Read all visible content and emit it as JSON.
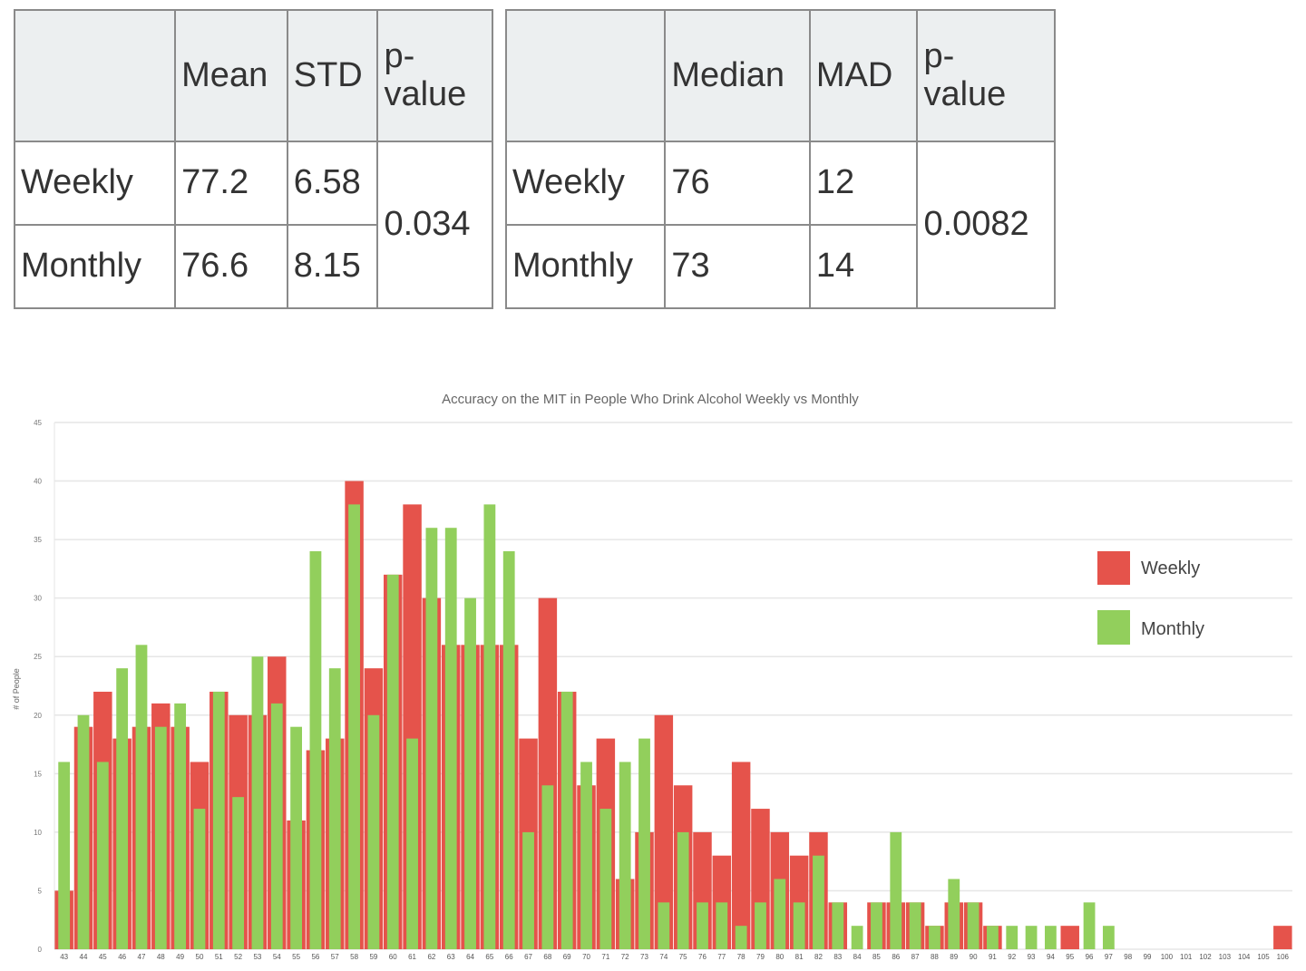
{
  "table_mean": {
    "headers": [
      "",
      "Mean",
      "STD",
      "p-\nvalue"
    ],
    "rows": [
      {
        "label": "Weekly",
        "a": "77.2",
        "b": "6.58"
      },
      {
        "label": "Monthly",
        "a": "76.6",
        "b": "8.15"
      }
    ],
    "p_value": "0.034"
  },
  "table_median": {
    "headers": [
      "",
      "Median",
      "MAD",
      "p-\nvalue"
    ],
    "rows": [
      {
        "label": "Weekly",
        "a": "76",
        "b": "12"
      },
      {
        "label": "Monthly",
        "a": "73",
        "b": "14"
      }
    ],
    "p_value": "0.0082"
  },
  "chart_data": {
    "type": "bar",
    "title": "Accuracy on the MIT in People Who Drink Alcohol Weekly vs Monthly",
    "xlabel": "",
    "ylabel": "# of People",
    "ylim": [
      0,
      45
    ],
    "yticks": [
      0,
      5,
      10,
      15,
      20,
      25,
      30,
      35,
      40,
      45
    ],
    "grid": true,
    "legend": "right",
    "overlapping": true,
    "categories": [
      "43",
      "44",
      "45",
      "46",
      "47",
      "48",
      "49",
      "50",
      "51",
      "52",
      "53",
      "54",
      "55",
      "56",
      "57",
      "58",
      "59",
      "60",
      "61",
      "62",
      "63",
      "64",
      "65",
      "66",
      "67",
      "68",
      "69",
      "70",
      "71",
      "72",
      "73",
      "74",
      "75",
      "76",
      "77",
      "78",
      "79",
      "80",
      "81",
      "82",
      "83",
      "84",
      "85",
      "86",
      "87",
      "88",
      "89",
      "90",
      "91",
      "92",
      "93",
      "94",
      "95",
      "96",
      "97",
      "98",
      "99",
      "100",
      "101",
      "102",
      "103",
      "104",
      "105",
      "106"
    ],
    "series": [
      {
        "name": "Weekly",
        "color": "#e5534b",
        "values": [
          5,
          19,
          22,
          18,
          19,
          21,
          19,
          16,
          22,
          20,
          20,
          25,
          11,
          17,
          18,
          40,
          24,
          32,
          38,
          30,
          26,
          26,
          26,
          26,
          18,
          30,
          22,
          14,
          18,
          6,
          10,
          20,
          14,
          10,
          8,
          16,
          12,
          10,
          8,
          10,
          4,
          0,
          4,
          4,
          4,
          2,
          4,
          4,
          2,
          0,
          0,
          0,
          2,
          0,
          0,
          0,
          0,
          0,
          0,
          0,
          0,
          0,
          0,
          2
        ]
      },
      {
        "name": "Monthly",
        "color": "#92cf5c",
        "values": [
          16,
          20,
          16,
          24,
          26,
          19,
          21,
          12,
          22,
          13,
          25,
          21,
          19,
          34,
          24,
          38,
          20,
          32,
          18,
          36,
          36,
          30,
          38,
          34,
          10,
          14,
          22,
          16,
          12,
          16,
          18,
          4,
          10,
          4,
          4,
          2,
          4,
          6,
          4,
          8,
          4,
          2,
          4,
          10,
          4,
          2,
          6,
          4,
          2,
          2,
          2,
          2,
          0,
          4,
          2,
          0,
          0,
          0,
          0,
          0,
          0,
          0,
          0,
          0
        ]
      }
    ]
  }
}
